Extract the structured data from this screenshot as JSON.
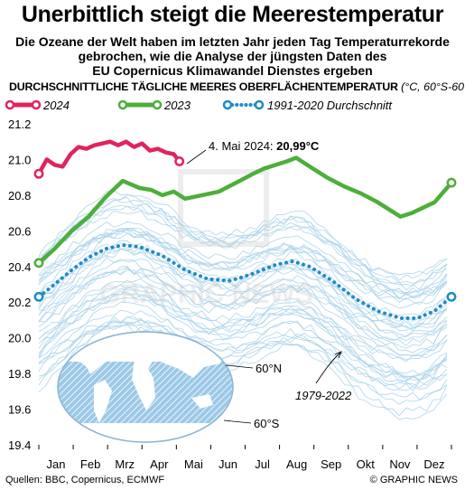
{
  "title": "Unerbittlich steigt die Meerestemperatur",
  "subtitle_lines": [
    "Die Ozeane der Welt haben im letzten Jahr jeden Tag Temperaturrekorde",
    "gebrochen, wie die Analyse der jüngsten Daten des",
    "EU Copernicus Klimawandel Dienstes ergeben"
  ],
  "heading": {
    "main": "DURCHSCHNITTLICHE TÄGLICHE MEERES OBERFLÄCHENTEMPERATUR",
    "unit": "(°C, 60°S-60°N)"
  },
  "legend": [
    {
      "label": "2024",
      "color": "#e0245e",
      "style": "solid"
    },
    {
      "label": "2023",
      "color": "#4caf3a",
      "style": "solid"
    },
    {
      "label": "1991-2020 Durchschnitt",
      "color": "#1e8bc8",
      "style": "dotted"
    }
  ],
  "annotation": {
    "prefix": "4. Mai 2024: ",
    "value": "20,99°C"
  },
  "label_1979": "1979-2022",
  "map_labels": {
    "north": "60°N",
    "south": "60°S"
  },
  "footer": {
    "source": "Quellen: BBC, Copernicus, ECMWF",
    "credit": "© GRAPHIC NEWS"
  },
  "watermark": "GRAPHIC NEWS",
  "colors": {
    "y2024": "#e0245e",
    "y2023": "#4caf3a",
    "avg": "#1e8bc8",
    "hist": "#a9d4ea",
    "map_ocean": "#8fc3e6"
  },
  "chart_data": {
    "type": "line",
    "title": "DURCHSCHNITTLICHE TÄGLICHE MEERES OBERFLÄCHENTEMPERATUR",
    "ylabel": "(°C, 60°S-60°N)",
    "x_ticks": [
      "Jan",
      "Feb",
      "Mrz",
      "Apr",
      "Mai",
      "Jun",
      "Jul",
      "Aug",
      "Sep",
      "Okt",
      "Nov",
      "Dez"
    ],
    "y_ticks": [
      "19.4",
      "19.6",
      "19.8",
      "20.0",
      "20.2",
      "20.4",
      "20.6",
      "20.8",
      "21.0",
      "21.2"
    ],
    "ylim": [
      19.4,
      21.2
    ],
    "xlim": [
      1,
      365
    ],
    "grid": false,
    "legend_position": "top",
    "series": [
      {
        "name": "2024",
        "x": [
          1,
          8,
          15,
          22,
          29,
          36,
          43,
          50,
          57,
          64,
          71,
          78,
          85,
          92,
          99,
          106,
          113,
          120,
          125
        ],
        "y": [
          20.92,
          21.0,
          20.97,
          20.96,
          21.03,
          21.07,
          21.06,
          21.08,
          21.09,
          21.1,
          21.08,
          21.1,
          21.07,
          21.09,
          21.05,
          21.06,
          21.04,
          21.03,
          20.99
        ]
      },
      {
        "name": "2023",
        "x": [
          1,
          15,
          30,
          45,
          60,
          75,
          90,
          100,
          110,
          120,
          130,
          145,
          160,
          175,
          190,
          200,
          210,
          220,
          228,
          240,
          255,
          270,
          285,
          300,
          310,
          320,
          330,
          340,
          350,
          365
        ],
        "y": [
          20.42,
          20.5,
          20.6,
          20.68,
          20.79,
          20.88,
          20.84,
          20.83,
          20.8,
          20.82,
          20.78,
          20.8,
          20.82,
          20.87,
          20.92,
          20.95,
          20.97,
          20.99,
          21.01,
          20.96,
          20.9,
          20.85,
          20.81,
          20.76,
          20.72,
          20.68,
          20.7,
          20.73,
          20.76,
          20.87
        ]
      },
      {
        "name": "1991-2020 Durchschnitt",
        "x": [
          1,
          15,
          30,
          45,
          60,
          75,
          90,
          110,
          130,
          150,
          170,
          190,
          210,
          225,
          240,
          260,
          280,
          300,
          320,
          335,
          350,
          365
        ],
        "y": [
          20.23,
          20.3,
          20.38,
          20.45,
          20.5,
          20.52,
          20.51,
          20.46,
          20.38,
          20.33,
          20.32,
          20.36,
          20.41,
          20.43,
          20.4,
          20.32,
          20.22,
          20.15,
          20.11,
          20.11,
          20.15,
          20.23
        ]
      }
    ]
  }
}
